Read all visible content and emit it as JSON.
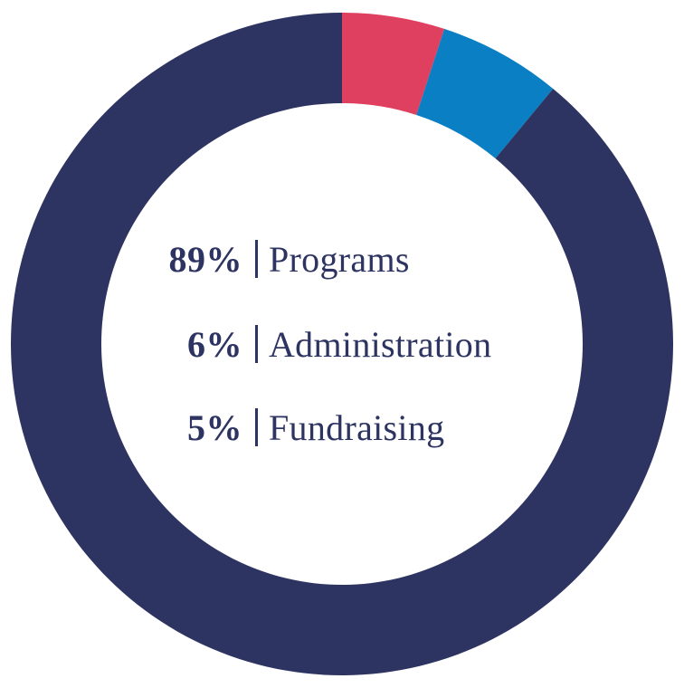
{
  "chart_data": {
    "type": "pie",
    "style": "donut",
    "start": "top",
    "direction": "clockwise",
    "slices": [
      {
        "name": "Fundraising",
        "value": 5,
        "label": "5%",
        "color": "#e0405f"
      },
      {
        "name": "Administration",
        "value": 6,
        "label": "6%",
        "color": "#0a7fc4"
      },
      {
        "name": "Programs",
        "value": 89,
        "label": "89%",
        "color": "#2e3461"
      }
    ],
    "legend": [
      {
        "value": "89%",
        "label": "Programs"
      },
      {
        "value": "6%",
        "label": "Administration"
      },
      {
        "value": "5%",
        "label": "Fundraising"
      }
    ],
    "legend_placement": "center",
    "legend_separator": "|",
    "text_color": "#2e3461"
  }
}
